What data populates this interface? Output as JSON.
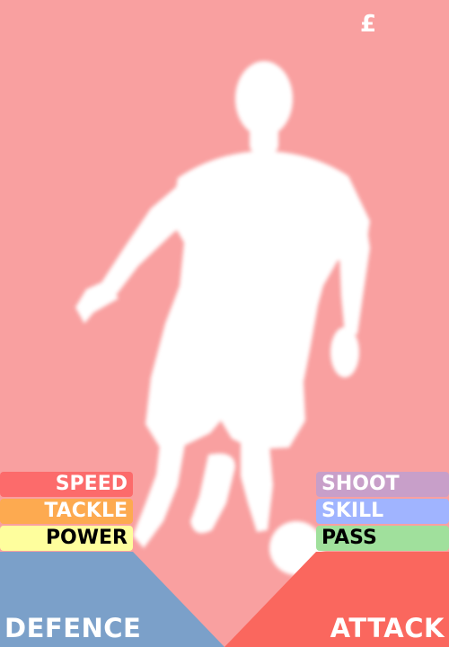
{
  "card": {
    "currency_symbol": "£",
    "background_color": "#f9a0a0",
    "player_silhouette": "player-dribbling-silhouette"
  },
  "defence": {
    "label": "DEFENCE",
    "color": "#7ba0c9",
    "stats": [
      {
        "key": "speed",
        "label": "SPEED",
        "color": "#fc6b6b",
        "text_color": "#ffffff"
      },
      {
        "key": "tackle",
        "label": "TACKLE",
        "color": "#fdaa50",
        "text_color": "#ffffff"
      },
      {
        "key": "power",
        "label": "POWER",
        "color": "#fefe9d",
        "text_color": "#000000"
      }
    ]
  },
  "attack": {
    "label": "ATTACK",
    "color": "#fa675e",
    "stats": [
      {
        "key": "shoot",
        "label": "SHOOT",
        "color": "#c89fc9",
        "text_color": "#ffffff"
      },
      {
        "key": "skill",
        "label": "SKILL",
        "color": "#a0b4ff",
        "text_color": "#ffffff"
      },
      {
        "key": "pass",
        "label": "PASS",
        "color": "#a0e09c",
        "text_color": "#000000"
      }
    ]
  }
}
